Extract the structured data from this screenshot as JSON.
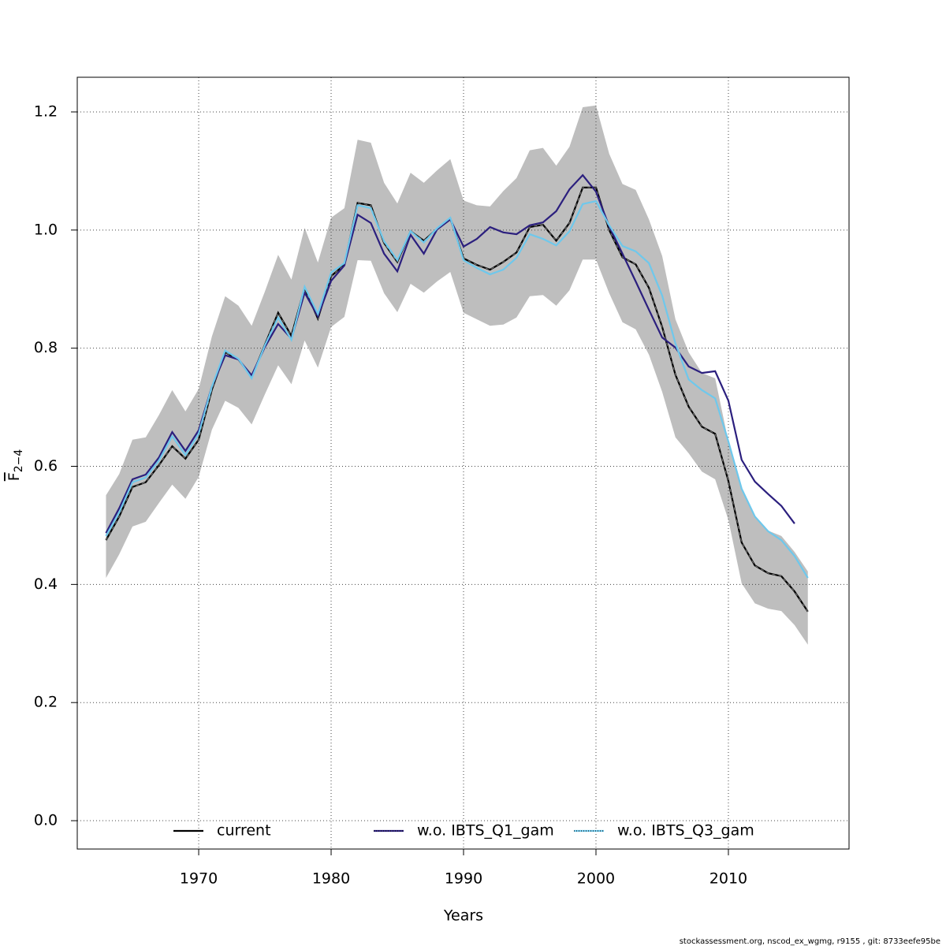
{
  "chart_data": {
    "type": "line",
    "xlabel": "Years",
    "ylabel": "F",
    "ylabel_sub": "2−4",
    "footer": "stockassessment.org, nscod_ex_wgmg, r9155 , git: 8733eefe95be",
    "x": [
      1963,
      1964,
      1965,
      1966,
      1967,
      1968,
      1969,
      1970,
      1971,
      1972,
      1973,
      1974,
      1975,
      1976,
      1977,
      1978,
      1979,
      1980,
      1981,
      1982,
      1983,
      1984,
      1985,
      1986,
      1987,
      1988,
      1989,
      1990,
      1991,
      1992,
      1993,
      1994,
      1995,
      1996,
      1997,
      1998,
      1999,
      2000,
      2001,
      2002,
      2003,
      2004,
      2005,
      2006,
      2007,
      2008,
      2009,
      2010,
      2011,
      2012,
      2013,
      2014,
      2015,
      2016
    ],
    "band": {
      "color": "#bebebe",
      "upper": [
        0.551,
        0.587,
        0.645,
        0.649,
        0.687,
        0.729,
        0.693,
        0.731,
        0.82,
        0.888,
        0.872,
        0.838,
        0.896,
        0.958,
        0.916,
        1.004,
        0.945,
        1.021,
        1.037,
        1.153,
        1.148,
        1.08,
        1.045,
        1.097,
        1.08,
        1.101,
        1.12,
        1.05,
        1.042,
        1.04,
        1.066,
        1.088,
        1.135,
        1.139,
        1.109,
        1.141,
        1.208,
        1.211,
        1.129,
        1.078,
        1.068,
        1.018,
        0.956,
        0.849,
        0.793,
        0.758,
        0.749,
        0.642,
        0.562,
        0.515,
        0.491,
        0.482,
        0.455,
        0.422
      ],
      "lower": [
        0.411,
        0.451,
        0.498,
        0.506,
        0.538,
        0.569,
        0.545,
        0.582,
        0.662,
        0.711,
        0.699,
        0.671,
        0.722,
        0.771,
        0.739,
        0.813,
        0.767,
        0.836,
        0.853,
        0.949,
        0.948,
        0.893,
        0.861,
        0.909,
        0.894,
        0.913,
        0.929,
        0.86,
        0.849,
        0.838,
        0.84,
        0.852,
        0.888,
        0.89,
        0.872,
        0.898,
        0.95,
        0.95,
        0.893,
        0.844,
        0.832,
        0.789,
        0.726,
        0.649,
        0.622,
        0.591,
        0.578,
        0.509,
        0.402,
        0.368,
        0.359,
        0.355,
        0.331,
        0.298
      ]
    },
    "series": [
      {
        "name": "current",
        "color": "#000000",
        "values": [
          0.475,
          0.515,
          0.565,
          0.573,
          0.602,
          0.634,
          0.613,
          0.645,
          0.73,
          0.793,
          0.781,
          0.751,
          0.806,
          0.86,
          0.821,
          0.902,
          0.85,
          0.922,
          0.941,
          1.046,
          1.042,
          0.978,
          0.946,
          0.998,
          0.982,
          1.002,
          1.02,
          0.952,
          0.941,
          0.933,
          0.946,
          0.962,
          1.005,
          1.009,
          0.982,
          1.012,
          1.072,
          1.072,
          1.0,
          0.954,
          0.942,
          0.902,
          0.836,
          0.755,
          0.701,
          0.667,
          0.655,
          0.575,
          0.471,
          0.432,
          0.419,
          0.414,
          0.388,
          0.354
        ]
      },
      {
        "name": "w.o. IBTS_Q1_gam",
        "color": "#2b1f7e",
        "values": [
          0.487,
          0.529,
          0.578,
          0.586,
          0.615,
          0.658,
          0.626,
          0.661,
          0.735,
          0.788,
          0.781,
          0.754,
          0.802,
          0.841,
          0.816,
          0.894,
          0.854,
          0.914,
          0.94,
          1.026,
          1.012,
          0.96,
          0.93,
          0.992,
          0.96,
          1.001,
          1.018,
          0.972,
          0.985,
          1.005,
          0.996,
          0.993,
          1.008,
          1.013,
          1.032,
          1.069,
          1.093,
          1.065,
          1.006,
          0.96,
          0.913,
          0.865,
          0.818,
          0.801,
          0.769,
          0.758,
          0.761,
          0.711,
          0.611,
          0.574,
          0.553,
          0.533,
          0.503,
          null
        ]
      },
      {
        "name": "w.o. IBTS_Q3_gam",
        "color": "#6ec8ec",
        "values": [
          0.482,
          0.522,
          0.573,
          0.581,
          0.61,
          0.651,
          0.619,
          0.655,
          0.735,
          0.796,
          0.782,
          0.749,
          0.805,
          0.852,
          0.814,
          0.904,
          0.858,
          0.928,
          0.944,
          1.042,
          1.037,
          0.981,
          0.949,
          0.998,
          0.979,
          1.003,
          1.021,
          0.949,
          0.936,
          0.925,
          0.933,
          0.953,
          0.993,
          0.985,
          0.974,
          0.998,
          1.044,
          1.049,
          1.008,
          0.973,
          0.964,
          0.944,
          0.889,
          0.808,
          0.747,
          0.729,
          0.715,
          0.642,
          0.562,
          0.515,
          0.49,
          0.475,
          0.448,
          0.411
        ]
      }
    ],
    "xlim": [
      1960.83,
      2019.11
    ],
    "ylim": [
      -0.048,
      1.2587
    ],
    "xticks": [
      1970,
      1980,
      1990,
      2000,
      2010
    ],
    "yticks": [
      {
        "value": 0,
        "label": "0.0"
      },
      0.2,
      0.4,
      0.6,
      0.8,
      {
        "value": 1,
        "label": "1.0"
      },
      1.2
    ],
    "grid": true,
    "legend": "bottom"
  }
}
